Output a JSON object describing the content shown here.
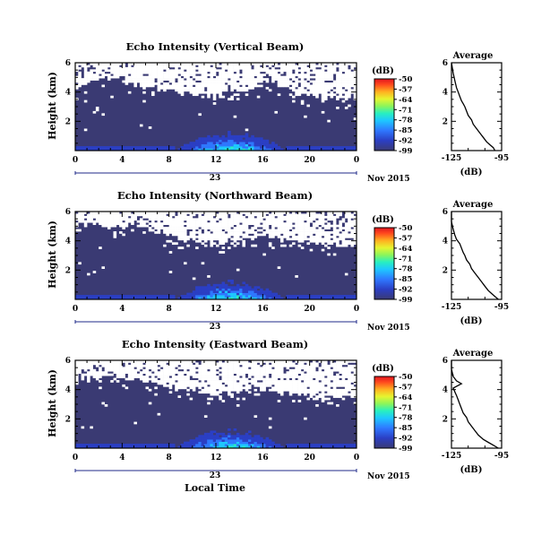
{
  "figure": {
    "month_label": "Nov 2015",
    "date_label": "23",
    "xlabel": "Local Time",
    "colorbar_unit": "(dB)",
    "colorbar_ticks": [
      "-50",
      "-57",
      "-64",
      "-71",
      "-78",
      "-85",
      "-92",
      "-99"
    ],
    "profile_title": "Average",
    "profile_xlabel": "(dB)",
    "colors": {
      "background_echo": "#3a3a73",
      "missing": "#ffffff",
      "colormap": [
        "#3a3a73",
        "#2b3fc4",
        "#2f78ff",
        "#1ec8ff",
        "#28f0c0",
        "#8cf55a",
        "#e6f530",
        "#ffb020",
        "#ff4a1e",
        "#e0141e"
      ]
    }
  },
  "chart_data": [
    {
      "type": "heatmap",
      "title": "Echo Intensity (Vertical Beam)",
      "ylabel": "Height (km)",
      "x_ticks": [
        "0",
        "4",
        "8",
        "12",
        "16",
        "20",
        "0"
      ],
      "y_ticks": [
        "6",
        "4",
        "2"
      ],
      "xlim": [
        0,
        24
      ],
      "ylim": [
        0,
        6
      ],
      "value_range_db": [
        -99,
        -50
      ],
      "missing_above_km": [
        4.3,
        4.6,
        4.9,
        5.0,
        4.8,
        4.5,
        4.4,
        4.3,
        4.2,
        4.0,
        3.9,
        3.8,
        3.9,
        4.0,
        4.1,
        4.3,
        4.6,
        4.8,
        4.4,
        4.0,
        3.8,
        3.7,
        3.6,
        3.6
      ],
      "profile": {
        "type": "line",
        "x_ticks": [
          "-125",
          "-95"
        ],
        "y_ticks": [
          "6",
          "4",
          "2"
        ],
        "xlim": [
          -125,
          -95
        ],
        "ylim": [
          0,
          6
        ],
        "x": [
          -99,
          -100,
          -102,
          -104,
          -106,
          -108,
          -110,
          -112,
          -113,
          -115,
          -116,
          -117,
          -118,
          -119,
          -120,
          -121,
          -122,
          -123,
          -124,
          -125
        ],
        "y": [
          0.0,
          0.2,
          0.4,
          0.6,
          0.9,
          1.2,
          1.5,
          1.8,
          2.1,
          2.4,
          2.7,
          3.0,
          3.2,
          3.4,
          3.7,
          4.0,
          4.3,
          4.8,
          5.3,
          6.0
        ]
      }
    },
    {
      "type": "heatmap",
      "title": "Echo Intensity (Northward Beam)",
      "ylabel": "Height (km)",
      "x_ticks": [
        "0",
        "4",
        "8",
        "12",
        "16",
        "20",
        "0"
      ],
      "y_ticks": [
        "6",
        "4",
        "2"
      ],
      "xlim": [
        0,
        24
      ],
      "ylim": [
        0,
        6
      ],
      "value_range_db": [
        -99,
        -50
      ],
      "missing_above_km": [
        5.0,
        5.2,
        5.1,
        5.0,
        5.0,
        4.9,
        4.8,
        4.6,
        4.4,
        4.2,
        4.0,
        3.9,
        3.9,
        4.0,
        4.1,
        4.2,
        4.3,
        4.3,
        4.2,
        4.0,
        3.9,
        3.8,
        3.7,
        3.7
      ],
      "profile": {
        "type": "line",
        "x_ticks": [
          "-125",
          "-95"
        ],
        "y_ticks": [
          "6",
          "4",
          "2"
        ],
        "xlim": [
          -125,
          -95
        ],
        "ylim": [
          0,
          6
        ],
        "x": [
          -97,
          -99,
          -101,
          -103,
          -105,
          -107,
          -109,
          -111,
          -113,
          -114,
          -116,
          -117,
          -118,
          -119,
          -120,
          -122,
          -123,
          -124,
          -125,
          -125
        ],
        "y": [
          0.0,
          0.2,
          0.4,
          0.6,
          0.9,
          1.2,
          1.5,
          1.8,
          2.1,
          2.4,
          2.7,
          3.0,
          3.2,
          3.5,
          3.8,
          4.1,
          4.4,
          4.8,
          5.3,
          6.0
        ]
      }
    },
    {
      "type": "heatmap",
      "title": "Echo Intensity (Eastward Beam)",
      "ylabel": "Height (km)",
      "x_ticks": [
        "0",
        "4",
        "8",
        "12",
        "16",
        "20",
        "0"
      ],
      "y_ticks": [
        "6",
        "4",
        "2"
      ],
      "xlim": [
        0,
        24
      ],
      "ylim": [
        0,
        6
      ],
      "value_range_db": [
        -99,
        -50
      ],
      "missing_above_km": [
        4.6,
        4.8,
        4.9,
        4.9,
        4.8,
        4.7,
        4.6,
        4.4,
        4.2,
        4.0,
        3.8,
        3.7,
        3.7,
        3.8,
        3.9,
        4.0,
        4.1,
        4.0,
        3.9,
        3.7,
        3.6,
        3.5,
        3.5,
        3.5
      ],
      "profile": {
        "type": "line",
        "x_ticks": [
          "-125",
          "-95"
        ],
        "y_ticks": [
          "6",
          "4",
          "2"
        ],
        "xlim": [
          -125,
          -95
        ],
        "ylim": [
          0,
          6
        ],
        "x": [
          -97,
          -100,
          -103,
          -106,
          -109,
          -111,
          -113,
          -115,
          -116,
          -118,
          -119,
          -120,
          -121,
          -122,
          -124,
          -119,
          -122,
          -124,
          -125,
          -125
        ],
        "y": [
          0.0,
          0.2,
          0.4,
          0.6,
          0.9,
          1.2,
          1.5,
          1.8,
          2.1,
          2.4,
          2.7,
          3.0,
          3.3,
          3.6,
          4.1,
          4.4,
          4.6,
          4.9,
          5.4,
          6.0
        ]
      }
    }
  ]
}
